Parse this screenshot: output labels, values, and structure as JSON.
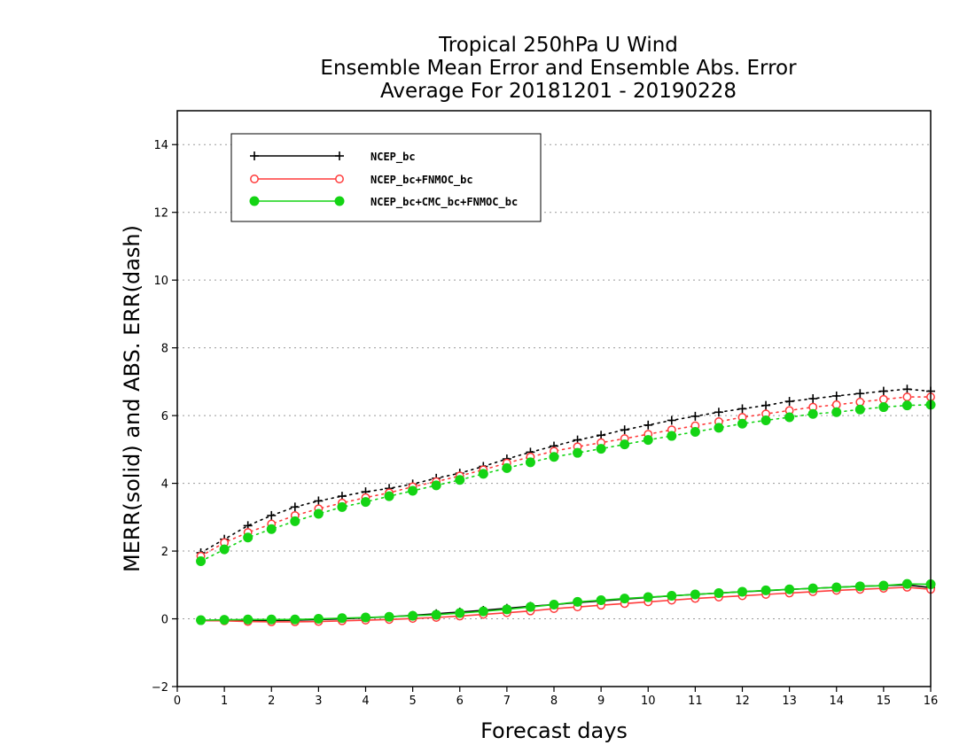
{
  "chart_data": {
    "type": "line",
    "title": [
      "Tropical 250hPa U Wind",
      "Ensemble Mean Error and Ensemble Abs. Error",
      "Average For 20181201 - 20190228"
    ],
    "xlabel": "Forecast days",
    "ylabel": "MERR(solid) and ABS. ERR(dash)",
    "xlim": [
      0,
      16
    ],
    "ylim": [
      -2,
      15
    ],
    "xticks": [
      "0",
      "1",
      "2",
      "3",
      "4",
      "5",
      "6",
      "7",
      "8",
      "9",
      "10",
      "11",
      "12",
      "13",
      "14",
      "15",
      "16"
    ],
    "yticks": [
      "−2",
      "0",
      "2",
      "4",
      "6",
      "8",
      "10",
      "12",
      "14"
    ],
    "grid": true,
    "legend_position": "top-left",
    "x": [
      0.5,
      1,
      1.5,
      2,
      2.5,
      3,
      3.5,
      4,
      4.5,
      5,
      5.5,
      6,
      6.5,
      7,
      7.5,
      8,
      8.5,
      9,
      9.5,
      10,
      10.5,
      11,
      11.5,
      12,
      12.5,
      13,
      13.5,
      14,
      14.5,
      15,
      15.5,
      16
    ],
    "series": [
      {
        "name": "NCEP_bc",
        "color": "#000000",
        "marker": "plus",
        "merr": [
          -0.05,
          -0.05,
          -0.06,
          -0.05,
          -0.04,
          -0.02,
          0.0,
          0.03,
          0.06,
          0.1,
          0.15,
          0.2,
          0.25,
          0.31,
          0.37,
          0.42,
          0.48,
          0.53,
          0.58,
          0.63,
          0.68,
          0.72,
          0.76,
          0.8,
          0.83,
          0.87,
          0.9,
          0.93,
          0.96,
          0.98,
          1.0,
          0.92
        ],
        "abs_err": [
          1.95,
          2.35,
          2.75,
          3.05,
          3.3,
          3.48,
          3.62,
          3.75,
          3.85,
          3.98,
          4.15,
          4.3,
          4.5,
          4.72,
          4.92,
          5.1,
          5.28,
          5.42,
          5.58,
          5.72,
          5.86,
          5.98,
          6.1,
          6.2,
          6.3,
          6.42,
          6.5,
          6.58,
          6.65,
          6.72,
          6.78,
          6.72
        ]
      },
      {
        "name": "NCEP_bc+FNMOC_bc",
        "color": "#ff3b3b",
        "marker": "open-circle",
        "merr": [
          -0.05,
          -0.06,
          -0.08,
          -0.09,
          -0.09,
          -0.08,
          -0.06,
          -0.04,
          -0.02,
          0.01,
          0.04,
          0.08,
          0.13,
          0.18,
          0.23,
          0.3,
          0.35,
          0.4,
          0.45,
          0.5,
          0.55,
          0.6,
          0.64,
          0.68,
          0.72,
          0.76,
          0.8,
          0.84,
          0.87,
          0.9,
          0.93,
          0.87
        ],
        "abs_err": [
          1.85,
          2.25,
          2.55,
          2.8,
          3.05,
          3.25,
          3.42,
          3.58,
          3.72,
          3.9,
          4.05,
          4.22,
          4.4,
          4.6,
          4.78,
          4.95,
          5.08,
          5.2,
          5.32,
          5.45,
          5.58,
          5.7,
          5.82,
          5.95,
          6.05,
          6.15,
          6.25,
          6.32,
          6.4,
          6.48,
          6.55,
          6.55
        ]
      },
      {
        "name": "NCEP_bc+CMC_bc+FNMOC_bc",
        "color": "#14d414",
        "marker": "filled-circle",
        "merr": [
          -0.04,
          -0.03,
          -0.02,
          -0.02,
          -0.02,
          0.0,
          0.02,
          0.04,
          0.06,
          0.09,
          0.12,
          0.17,
          0.22,
          0.28,
          0.35,
          0.42,
          0.5,
          0.55,
          0.6,
          0.64,
          0.68,
          0.72,
          0.76,
          0.8,
          0.84,
          0.87,
          0.9,
          0.93,
          0.96,
          0.98,
          1.03,
          1.02
        ],
        "abs_err": [
          1.7,
          2.05,
          2.4,
          2.65,
          2.88,
          3.1,
          3.3,
          3.45,
          3.62,
          3.78,
          3.94,
          4.1,
          4.28,
          4.45,
          4.62,
          4.78,
          4.9,
          5.02,
          5.15,
          5.28,
          5.4,
          5.52,
          5.64,
          5.76,
          5.86,
          5.95,
          6.05,
          6.1,
          6.18,
          6.25,
          6.3,
          6.32
        ]
      }
    ]
  }
}
